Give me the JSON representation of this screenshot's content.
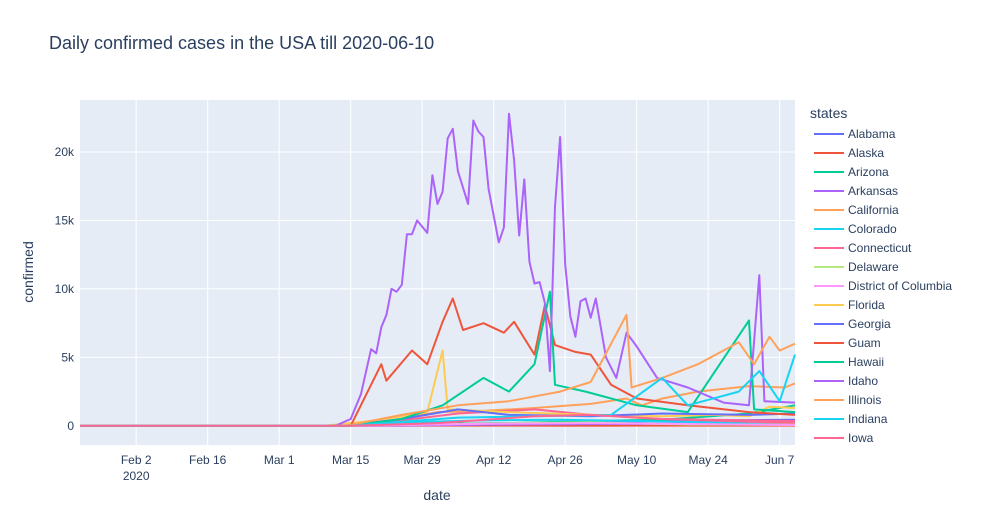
{
  "chart_data": {
    "type": "line",
    "title": "Daily confirmed cases in the USA till 2020-06-10",
    "xlabel": "date",
    "ylabel": "confirmed",
    "legend_title": "states",
    "legend_position": "right",
    "x_range": [
      "2020-01-22",
      "2020-06-10"
    ],
    "ylim": [
      -1400,
      23800
    ],
    "x_ticks": [
      {
        "date": "2020-02-02",
        "label": "Feb 2",
        "sublabel": "2020"
      },
      {
        "date": "2020-02-16",
        "label": "Feb 16"
      },
      {
        "date": "2020-03-01",
        "label": "Mar 1"
      },
      {
        "date": "2020-03-15",
        "label": "Mar 15"
      },
      {
        "date": "2020-03-29",
        "label": "Mar 29"
      },
      {
        "date": "2020-04-12",
        "label": "Apr 12"
      },
      {
        "date": "2020-04-26",
        "label": "Apr 26"
      },
      {
        "date": "2020-05-10",
        "label": "May 10"
      },
      {
        "date": "2020-05-24",
        "label": "May 24"
      },
      {
        "date": "2020-06-07",
        "label": "Jun 7"
      }
    ],
    "y_ticks": [
      {
        "value": 0,
        "label": "0"
      },
      {
        "value": 5000,
        "label": "5k"
      },
      {
        "value": 10000,
        "label": "10k"
      },
      {
        "value": 15000,
        "label": "15k"
      },
      {
        "value": 20000,
        "label": "20k"
      }
    ],
    "grid": true,
    "series": [
      {
        "name": "Alabama",
        "color": "#636efa",
        "points": [
          [
            "2020-01-22",
            0
          ],
          [
            "2020-03-12",
            0
          ],
          [
            "2020-03-20",
            50
          ],
          [
            "2020-04-01",
            150
          ],
          [
            "2020-04-15",
            200
          ],
          [
            "2020-05-01",
            250
          ],
          [
            "2020-05-15",
            350
          ],
          [
            "2020-05-25",
            400
          ],
          [
            "2020-06-10",
            450
          ]
        ]
      },
      {
        "name": "Alaska",
        "color": "#ef553b",
        "points": [
          [
            "2020-01-22",
            0
          ],
          [
            "2020-03-15",
            0
          ],
          [
            "2020-04-01",
            15
          ],
          [
            "2020-05-01",
            10
          ],
          [
            "2020-06-10",
            20
          ]
        ]
      },
      {
        "name": "Arizona",
        "color": "#00cc96",
        "points": [
          [
            "2020-01-22",
            0
          ],
          [
            "2020-03-15",
            0
          ],
          [
            "2020-04-01",
            150
          ],
          [
            "2020-04-15",
            200
          ],
          [
            "2020-05-01",
            350
          ],
          [
            "2020-05-15",
            450
          ],
          [
            "2020-06-01",
            900
          ],
          [
            "2020-06-10",
            1500
          ]
        ]
      },
      {
        "name": "Arkansas",
        "color": "#ab63fa",
        "points": [
          [
            "2020-01-22",
            0
          ],
          [
            "2020-03-20",
            0
          ],
          [
            "2020-04-15",
            100
          ],
          [
            "2020-05-15",
            150
          ],
          [
            "2020-06-10",
            300
          ]
        ]
      },
      {
        "name": "California",
        "color": "#ffa15a",
        "points": [
          [
            "2020-01-22",
            0
          ],
          [
            "2020-03-10",
            0
          ],
          [
            "2020-03-20",
            200
          ],
          [
            "2020-04-01",
            1000
          ],
          [
            "2020-04-10",
            1100
          ],
          [
            "2020-04-20",
            1300
          ],
          [
            "2020-05-01",
            1600
          ],
          [
            "2020-05-08",
            2000
          ],
          [
            "2020-05-11",
            1500
          ],
          [
            "2020-05-15",
            2000
          ],
          [
            "2020-05-22",
            2500
          ],
          [
            "2020-06-01",
            2900
          ],
          [
            "2020-06-08",
            2800
          ],
          [
            "2020-06-10",
            3100
          ]
        ]
      },
      {
        "name": "Colorado",
        "color": "#19d3f3",
        "points": [
          [
            "2020-01-22",
            0
          ],
          [
            "2020-03-14",
            0
          ],
          [
            "2020-03-25",
            250
          ],
          [
            "2020-04-10",
            400
          ],
          [
            "2020-04-25",
            450
          ],
          [
            "2020-05-10",
            350
          ],
          [
            "2020-05-25",
            250
          ],
          [
            "2020-06-10",
            200
          ]
        ]
      },
      {
        "name": "Connecticut",
        "color": "#ff6692",
        "points": [
          [
            "2020-01-22",
            0
          ],
          [
            "2020-03-15",
            0
          ],
          [
            "2020-03-25",
            400
          ],
          [
            "2020-04-05",
            900
          ],
          [
            "2020-04-20",
            1200
          ],
          [
            "2020-05-01",
            800
          ],
          [
            "2020-05-15",
            500
          ],
          [
            "2020-06-01",
            300
          ],
          [
            "2020-06-10",
            200
          ]
        ]
      },
      {
        "name": "Delaware",
        "color": "#b6e880",
        "points": [
          [
            "2020-01-22",
            0
          ],
          [
            "2020-03-15",
            0
          ],
          [
            "2020-04-15",
            200
          ],
          [
            "2020-05-01",
            250
          ],
          [
            "2020-05-20",
            100
          ],
          [
            "2020-06-10",
            80
          ]
        ]
      },
      {
        "name": "District of Columbia",
        "color": "#ff97ff",
        "points": [
          [
            "2020-01-22",
            0
          ],
          [
            "2020-03-15",
            0
          ],
          [
            "2020-04-10",
            150
          ],
          [
            "2020-05-01",
            200
          ],
          [
            "2020-06-10",
            60
          ]
        ]
      },
      {
        "name": "Florida",
        "color": "#fecb52",
        "points": [
          [
            "2020-01-22",
            0
          ],
          [
            "2020-03-10",
            0
          ],
          [
            "2020-03-20",
            400
          ],
          [
            "2020-03-30",
            1000
          ],
          [
            "2020-04-02",
            5500
          ],
          [
            "2020-04-03",
            1200
          ],
          [
            "2020-04-15",
            1000
          ],
          [
            "2020-05-01",
            800
          ],
          [
            "2020-05-15",
            700
          ],
          [
            "2020-05-25",
            800
          ],
          [
            "2020-06-01",
            700
          ],
          [
            "2020-06-05",
            1400
          ],
          [
            "2020-06-10",
            1300
          ]
        ]
      },
      {
        "name": "Georgia",
        "color": "#636efa",
        "points": [
          [
            "2020-01-22",
            0
          ],
          [
            "2020-03-14",
            0
          ],
          [
            "2020-03-25",
            500
          ],
          [
            "2020-04-05",
            1200
          ],
          [
            "2020-04-15",
            800
          ],
          [
            "2020-05-01",
            700
          ],
          [
            "2020-05-15",
            900
          ],
          [
            "2020-06-01",
            800
          ],
          [
            "2020-06-10",
            900
          ]
        ]
      },
      {
        "name": "Guam",
        "color": "#ef553b",
        "points": [
          [
            "2020-01-22",
            0
          ],
          [
            "2020-03-15",
            0
          ],
          [
            "2020-03-21",
            4500
          ],
          [
            "2020-03-22",
            3300
          ],
          [
            "2020-03-27",
            5500
          ],
          [
            "2020-03-30",
            4500
          ],
          [
            "2020-04-02",
            7600
          ],
          [
            "2020-04-04",
            9300
          ],
          [
            "2020-04-06",
            7000
          ],
          [
            "2020-04-10",
            7500
          ],
          [
            "2020-04-14",
            6800
          ],
          [
            "2020-04-16",
            7600
          ],
          [
            "2020-04-20",
            5200
          ],
          [
            "2020-04-22",
            8800
          ],
          [
            "2020-04-24",
            5900
          ],
          [
            "2020-04-28",
            5400
          ],
          [
            "2020-05-01",
            5200
          ],
          [
            "2020-05-05",
            3000
          ],
          [
            "2020-05-10",
            2000
          ],
          [
            "2020-05-20",
            1500
          ],
          [
            "2020-06-01",
            1000
          ],
          [
            "2020-06-10",
            800
          ]
        ]
      },
      {
        "name": "Hawaii",
        "color": "#00cc96",
        "points": [
          [
            "2020-01-22",
            0
          ],
          [
            "2020-03-15",
            0
          ],
          [
            "2020-03-25",
            500
          ],
          [
            "2020-04-02",
            1500
          ],
          [
            "2020-04-10",
            3500
          ],
          [
            "2020-04-15",
            2500
          ],
          [
            "2020-04-20",
            4500
          ],
          [
            "2020-04-23",
            9800
          ],
          [
            "2020-04-24",
            3000
          ],
          [
            "2020-04-30",
            2500
          ],
          [
            "2020-05-10",
            1500
          ],
          [
            "2020-05-20",
            1000
          ],
          [
            "2020-06-01",
            7700
          ],
          [
            "2020-06-02",
            1200
          ],
          [
            "2020-06-10",
            1000
          ]
        ]
      },
      {
        "name": "Idaho",
        "color": "#ab63fa",
        "points": [
          [
            "2020-01-22",
            0
          ],
          [
            "2020-03-12",
            0
          ],
          [
            "2020-03-15",
            500
          ],
          [
            "2020-03-17",
            2300
          ],
          [
            "2020-03-19",
            5600
          ],
          [
            "2020-03-20",
            5300
          ],
          [
            "2020-03-21",
            7200
          ],
          [
            "2020-03-22",
            8100
          ],
          [
            "2020-03-23",
            10000
          ],
          [
            "2020-03-24",
            9800
          ],
          [
            "2020-03-25",
            10300
          ],
          [
            "2020-03-26",
            14000
          ],
          [
            "2020-03-27",
            14000
          ],
          [
            "2020-03-28",
            15000
          ],
          [
            "2020-03-30",
            14100
          ],
          [
            "2020-03-31",
            18300
          ],
          [
            "2020-04-01",
            16200
          ],
          [
            "2020-04-02",
            17100
          ],
          [
            "2020-04-03",
            21000
          ],
          [
            "2020-04-04",
            21700
          ],
          [
            "2020-04-05",
            18600
          ],
          [
            "2020-04-07",
            16200
          ],
          [
            "2020-04-08",
            22300
          ],
          [
            "2020-04-09",
            21500
          ],
          [
            "2020-04-10",
            21100
          ],
          [
            "2020-04-11",
            17300
          ],
          [
            "2020-04-13",
            13400
          ],
          [
            "2020-04-14",
            14500
          ],
          [
            "2020-04-15",
            22800
          ],
          [
            "2020-04-16",
            19400
          ],
          [
            "2020-04-17",
            13900
          ],
          [
            "2020-04-18",
            18000
          ],
          [
            "2020-04-19",
            12000
          ],
          [
            "2020-04-20",
            10400
          ],
          [
            "2020-04-21",
            10500
          ],
          [
            "2020-04-22",
            9000
          ],
          [
            "2020-04-23",
            4000
          ],
          [
            "2020-04-24",
            16000
          ],
          [
            "2020-04-25",
            21100
          ],
          [
            "2020-04-26",
            11800
          ],
          [
            "2020-04-27",
            8000
          ],
          [
            "2020-04-28",
            6500
          ],
          [
            "2020-04-29",
            9100
          ],
          [
            "2020-04-30",
            9300
          ],
          [
            "2020-05-01",
            7900
          ],
          [
            "2020-05-02",
            9300
          ],
          [
            "2020-05-04",
            5000
          ],
          [
            "2020-05-06",
            3500
          ],
          [
            "2020-05-08",
            6800
          ],
          [
            "2020-05-10",
            5800
          ],
          [
            "2020-05-14",
            3500
          ],
          [
            "2020-05-20",
            2800
          ],
          [
            "2020-05-27",
            1700
          ],
          [
            "2020-06-01",
            1500
          ],
          [
            "2020-06-03",
            11000
          ],
          [
            "2020-06-04",
            1800
          ],
          [
            "2020-06-10",
            1700
          ]
        ]
      },
      {
        "name": "Illinois",
        "color": "#ffa15a",
        "points": [
          [
            "2020-01-22",
            0
          ],
          [
            "2020-03-14",
            0
          ],
          [
            "2020-03-25",
            800
          ],
          [
            "2020-04-05",
            1500
          ],
          [
            "2020-04-15",
            1800
          ],
          [
            "2020-04-25",
            2500
          ],
          [
            "2020-05-01",
            3200
          ],
          [
            "2020-05-08",
            8100
          ],
          [
            "2020-05-09",
            2800
          ],
          [
            "2020-05-15",
            3500
          ],
          [
            "2020-05-22",
            4500
          ],
          [
            "2020-05-30",
            6100
          ],
          [
            "2020-06-02",
            4500
          ],
          [
            "2020-06-05",
            6500
          ],
          [
            "2020-06-07",
            5500
          ],
          [
            "2020-06-10",
            6000
          ]
        ]
      },
      {
        "name": "Indiana",
        "color": "#19d3f3",
        "points": [
          [
            "2020-01-22",
            0
          ],
          [
            "2020-03-15",
            0
          ],
          [
            "2020-03-25",
            300
          ],
          [
            "2020-04-05",
            600
          ],
          [
            "2020-04-20",
            700
          ],
          [
            "2020-05-05",
            800
          ],
          [
            "2020-05-15",
            3500
          ],
          [
            "2020-05-20",
            1500
          ],
          [
            "2020-05-30",
            2500
          ],
          [
            "2020-06-03",
            4000
          ],
          [
            "2020-06-07",
            1800
          ],
          [
            "2020-06-10",
            5200
          ]
        ]
      },
      {
        "name": "Iowa",
        "color": "#ff6692",
        "points": [
          [
            "2020-01-22",
            0
          ],
          [
            "2020-03-15",
            0
          ],
          [
            "2020-04-01",
            200
          ],
          [
            "2020-04-20",
            700
          ],
          [
            "2020-05-01",
            800
          ],
          [
            "2020-05-15",
            500
          ],
          [
            "2020-06-01",
            400
          ],
          [
            "2020-06-10",
            350
          ]
        ]
      }
    ]
  }
}
